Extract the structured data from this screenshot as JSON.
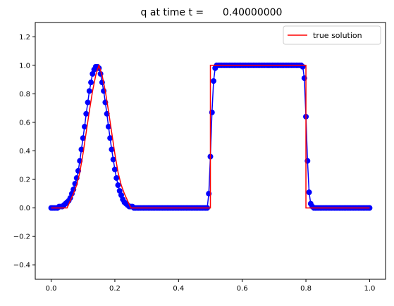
{
  "chart_data": {
    "type": "line",
    "title": "q at time t =      0.40000000",
    "xlabel": "",
    "ylabel": "",
    "xlim": [
      -0.05,
      1.05
    ],
    "ylim": [
      -0.5,
      1.3
    ],
    "x_ticks": [
      0.0,
      0.2,
      0.4,
      0.6,
      0.8,
      1.0
    ],
    "x_tick_labels": [
      "0.0",
      "0.2",
      "0.4",
      "0.6",
      "0.8",
      "1.0"
    ],
    "y_ticks": [
      -0.4,
      -0.2,
      0.0,
      0.2,
      0.4,
      0.6,
      0.8,
      1.0,
      1.2
    ],
    "y_tick_labels": [
      "−0.4",
      "−0.2",
      "0.0",
      "0.2",
      "0.4",
      "0.6",
      "0.8",
      "1.0",
      "1.2"
    ],
    "grid": false,
    "legend_position": "top-right",
    "colors": {
      "numerical": "#0000ff",
      "true_solution": "#ff0000"
    },
    "series": [
      {
        "name": "true solution",
        "style": "line",
        "x": [
          0.0,
          0.05,
          0.06,
          0.07,
          0.08,
          0.09,
          0.1,
          0.11,
          0.12,
          0.13,
          0.14,
          0.15,
          0.16,
          0.17,
          0.18,
          0.19,
          0.2,
          0.21,
          0.22,
          0.23,
          0.24,
          0.25,
          0.5,
          0.5,
          0.8,
          0.8,
          1.0
        ],
        "values": [
          0.0,
          0.0,
          0.05,
          0.1,
          0.16,
          0.25,
          0.38,
          0.53,
          0.68,
          0.82,
          0.93,
          1.0,
          0.93,
          0.82,
          0.68,
          0.53,
          0.38,
          0.25,
          0.16,
          0.1,
          0.05,
          0.0,
          0.0,
          1.0,
          1.0,
          0.0,
          0.0
        ]
      },
      {
        "style": "markers",
        "x": [
          0.0,
          0.005,
          0.01,
          0.015,
          0.02,
          0.025,
          0.03,
          0.035,
          0.04,
          0.045,
          0.05,
          0.055,
          0.06,
          0.065,
          0.07,
          0.075,
          0.08,
          0.085,
          0.09,
          0.095,
          0.1,
          0.105,
          0.11,
          0.115,
          0.12,
          0.125,
          0.13,
          0.135,
          0.14,
          0.145,
          0.15,
          0.155,
          0.16,
          0.165,
          0.17,
          0.175,
          0.18,
          0.185,
          0.19,
          0.195,
          0.2,
          0.205,
          0.21,
          0.215,
          0.22,
          0.225,
          0.23,
          0.235,
          0.24,
          0.245,
          0.25,
          0.255,
          0.26,
          0.265,
          0.27,
          0.275,
          0.28,
          0.285,
          0.29,
          0.295,
          0.3,
          0.305,
          0.31,
          0.315,
          0.32,
          0.325,
          0.33,
          0.335,
          0.34,
          0.345,
          0.35,
          0.355,
          0.36,
          0.365,
          0.37,
          0.375,
          0.38,
          0.385,
          0.39,
          0.395,
          0.4,
          0.405,
          0.41,
          0.415,
          0.42,
          0.425,
          0.43,
          0.435,
          0.44,
          0.445,
          0.45,
          0.455,
          0.46,
          0.465,
          0.47,
          0.475,
          0.48,
          0.485,
          0.49,
          0.495,
          0.5,
          0.505,
          0.51,
          0.515,
          0.52,
          0.525,
          0.53,
          0.535,
          0.54,
          0.545,
          0.55,
          0.555,
          0.56,
          0.565,
          0.57,
          0.575,
          0.58,
          0.585,
          0.59,
          0.595,
          0.6,
          0.605,
          0.61,
          0.615,
          0.62,
          0.625,
          0.63,
          0.635,
          0.64,
          0.645,
          0.65,
          0.655,
          0.66,
          0.665,
          0.67,
          0.675,
          0.68,
          0.685,
          0.69,
          0.695,
          0.7,
          0.705,
          0.71,
          0.715,
          0.72,
          0.725,
          0.73,
          0.735,
          0.74,
          0.745,
          0.75,
          0.755,
          0.76,
          0.765,
          0.77,
          0.775,
          0.78,
          0.785,
          0.79,
          0.795,
          0.8,
          0.805,
          0.81,
          0.815,
          0.82,
          0.825,
          0.83,
          0.835,
          0.84,
          0.845,
          0.85,
          0.855,
          0.86,
          0.865,
          0.87,
          0.875,
          0.88,
          0.885,
          0.89,
          0.895,
          0.9,
          0.905,
          0.91,
          0.915,
          0.92,
          0.925,
          0.93,
          0.935,
          0.94,
          0.945,
          0.95,
          0.955,
          0.96,
          0.965,
          0.97,
          0.975,
          0.98,
          0.985,
          0.99,
          0.995,
          1.0
        ],
        "values": [
          0.0,
          0.0,
          0.0,
          0.0,
          0.0,
          0.01,
          0.01,
          0.01,
          0.02,
          0.03,
          0.04,
          0.05,
          0.07,
          0.1,
          0.13,
          0.17,
          0.21,
          0.26,
          0.33,
          0.41,
          0.49,
          0.57,
          0.66,
          0.74,
          0.82,
          0.88,
          0.94,
          0.97,
          0.99,
          0.99,
          0.98,
          0.94,
          0.88,
          0.82,
          0.74,
          0.66,
          0.57,
          0.49,
          0.41,
          0.34,
          0.27,
          0.21,
          0.16,
          0.12,
          0.09,
          0.06,
          0.04,
          0.03,
          0.02,
          0.01,
          0.01,
          0.01,
          0.0,
          0.0,
          0.0,
          0.0,
          0.0,
          0.0,
          0.0,
          0.0,
          0.0,
          0.0,
          0.0,
          0.0,
          0.0,
          0.0,
          0.0,
          0.0,
          0.0,
          0.0,
          0.0,
          0.0,
          0.0,
          0.0,
          0.0,
          0.0,
          0.0,
          0.0,
          0.0,
          0.0,
          0.0,
          0.0,
          0.0,
          0.0,
          0.0,
          0.0,
          0.0,
          0.0,
          0.0,
          0.0,
          0.0,
          0.0,
          0.0,
          0.0,
          0.0,
          0.0,
          0.0,
          0.0,
          0.0,
          0.1,
          0.36,
          0.67,
          0.89,
          0.98,
          1.0,
          1.0,
          1.0,
          1.0,
          1.0,
          1.0,
          1.0,
          1.0,
          1.0,
          1.0,
          1.0,
          1.0,
          1.0,
          1.0,
          1.0,
          1.0,
          1.0,
          1.0,
          1.0,
          1.0,
          1.0,
          1.0,
          1.0,
          1.0,
          1.0,
          1.0,
          1.0,
          1.0,
          1.0,
          1.0,
          1.0,
          1.0,
          1.0,
          1.0,
          1.0,
          1.0,
          1.0,
          1.0,
          1.0,
          1.0,
          1.0,
          1.0,
          1.0,
          1.0,
          1.0,
          1.0,
          1.0,
          1.0,
          1.0,
          1.0,
          1.0,
          1.0,
          1.0,
          1.0,
          0.99,
          0.91,
          0.64,
          0.33,
          0.11,
          0.03,
          0.01,
          0.0,
          0.0,
          0.0,
          0.0,
          0.0,
          0.0,
          0.0,
          0.0,
          0.0,
          0.0,
          0.0,
          0.0,
          0.0,
          0.0,
          0.0,
          0.0,
          0.0,
          0.0,
          0.0,
          0.0,
          0.0,
          0.0,
          0.0,
          0.0,
          0.0,
          0.0,
          0.0,
          0.0,
          0.0,
          0.0,
          0.0,
          0.0,
          0.0,
          0.0,
          0.0,
          0.0
        ]
      }
    ]
  }
}
